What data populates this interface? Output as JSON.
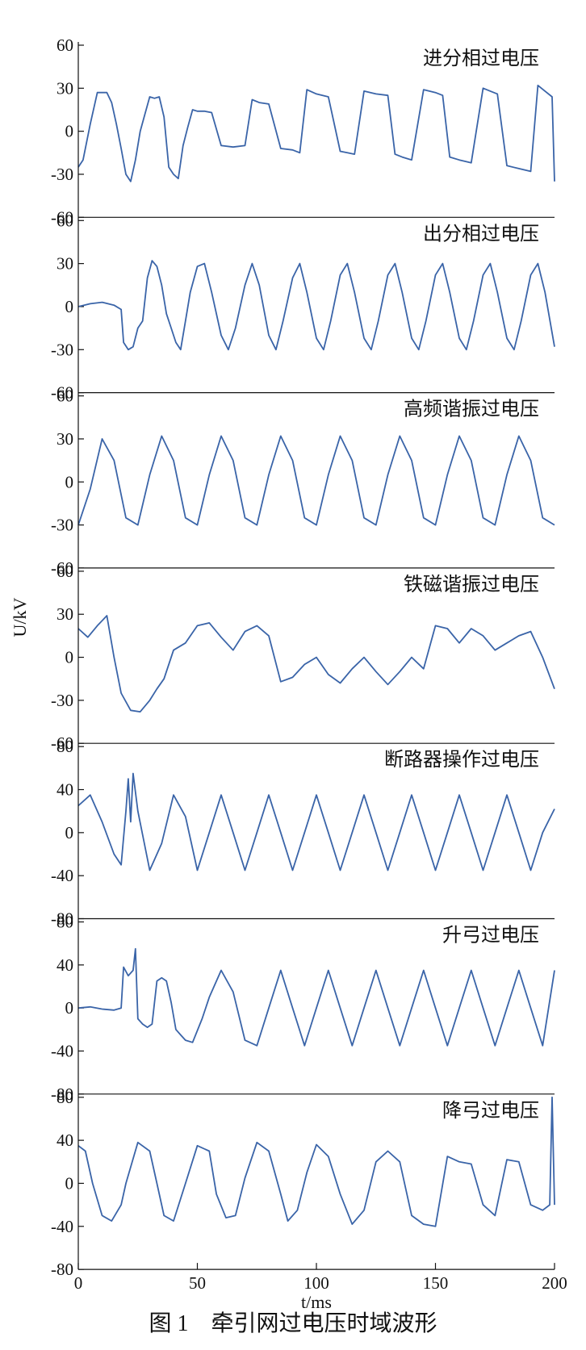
{
  "caption": "图 1　牵引网过电压时域波形",
  "chart_data": {
    "type": "line",
    "xlabel": "t/ms",
    "ylabel": "U/kV",
    "xlim": [
      0,
      200
    ],
    "xticks": [
      0,
      50,
      100,
      150,
      200
    ],
    "line_color": "#3a64a8",
    "panels": [
      {
        "title": "进分相过电压",
        "ylim": [
          -60,
          60
        ],
        "yticks": [
          -60,
          -30,
          0,
          30,
          60
        ],
        "series": [
          {
            "x": [
              0,
              2,
              5,
              8,
              12,
              14,
              16,
              18,
              20,
              22,
              24,
              26,
              28,
              30,
              32,
              34,
              36,
              38,
              40,
              42,
              44,
              46,
              48,
              50,
              53,
              56,
              60,
              65,
              70,
              73,
              76,
              80,
              85,
              90,
              93,
              96,
              100,
              105,
              110,
              113,
              116,
              120,
              125,
              130,
              133,
              136,
              140,
              145,
              150,
              153,
              156,
              160,
              165,
              170,
              173,
              176,
              180,
              185,
              190,
              193,
              196,
              199,
              200
            ],
            "y": [
              -25,
              -20,
              5,
              27,
              27,
              20,
              5,
              -12,
              -30,
              -35,
              -20,
              0,
              12,
              24,
              23,
              24,
              10,
              -25,
              -30,
              -33,
              -10,
              3,
              15,
              14,
              14,
              13,
              -10,
              -11,
              -10,
              22,
              20,
              19,
              -12,
              -13,
              -15,
              29,
              26,
              24,
              -14,
              -15,
              -16,
              28,
              26,
              25,
              -16,
              -18,
              -20,
              29,
              27,
              25,
              -18,
              -20,
              -22,
              30,
              28,
              26,
              -24,
              -26,
              -28,
              32,
              28,
              24,
              -35
            ]
          }
        ]
      },
      {
        "title": "出分相过电压",
        "ylim": [
          -60,
          60
        ],
        "yticks": [
          -60,
          -30,
          0,
          30,
          60
        ],
        "series": [
          {
            "x": [
              0,
              5,
              10,
              15,
              18,
              19,
              21,
              23,
              25,
              27,
              29,
              31,
              33,
              35,
              37,
              39,
              41,
              43,
              45,
              47,
              50,
              53,
              56,
              60,
              63,
              66,
              70,
              73,
              76,
              80,
              83,
              86,
              90,
              93,
              96,
              100,
              103,
              106,
              110,
              113,
              116,
              120,
              123,
              126,
              130,
              133,
              136,
              140,
              143,
              146,
              150,
              153,
              156,
              160,
              163,
              166,
              170,
              173,
              176,
              180,
              183,
              186,
              190,
              193,
              196,
              200
            ],
            "y": [
              0,
              2,
              3,
              1,
              -2,
              -25,
              -30,
              -28,
              -15,
              -10,
              20,
              32,
              28,
              15,
              -5,
              -15,
              -25,
              -30,
              -10,
              10,
              28,
              30,
              10,
              -20,
              -30,
              -15,
              15,
              30,
              15,
              -20,
              -30,
              -10,
              20,
              30,
              10,
              -22,
              -30,
              -10,
              22,
              30,
              10,
              -22,
              -30,
              -10,
              22,
              30,
              10,
              -22,
              -30,
              -10,
              22,
              30,
              10,
              -22,
              -30,
              -10,
              22,
              30,
              10,
              -22,
              -30,
              -10,
              22,
              30,
              10,
              -28
            ]
          }
        ]
      },
      {
        "title": "高频谐振过电压",
        "ylim": [
          -60,
          60
        ],
        "yticks": [
          -60,
          -30,
          0,
          30,
          60
        ],
        "series": [
          {
            "x": [
              0,
              5,
              10,
              15,
              20,
              25,
              30,
              35,
              40,
              45,
              50,
              55,
              60,
              65,
              70,
              75,
              80,
              85,
              90,
              95,
              100,
              105,
              110,
              115,
              120,
              125,
              130,
              135,
              140,
              145,
              150,
              155,
              160,
              165,
              170,
              175,
              180,
              185,
              190,
              195,
              200
            ],
            "y": [
              -30,
              -5,
              30,
              15,
              -25,
              -30,
              5,
              32,
              15,
              -25,
              -30,
              5,
              32,
              15,
              -25,
              -30,
              5,
              32,
              15,
              -25,
              -30,
              5,
              32,
              15,
              -25,
              -30,
              5,
              32,
              15,
              -25,
              -30,
              5,
              32,
              15,
              -25,
              -30,
              5,
              32,
              15,
              -25,
              -30
            ]
          }
        ]
      },
      {
        "title": "铁磁谐振过电压",
        "ylim": [
          -60,
          60
        ],
        "yticks": [
          -60,
          -30,
          0,
          30,
          60
        ],
        "series": [
          {
            "x": [
              0,
              4,
              8,
              12,
              15,
              18,
              22,
              26,
              30,
              33,
              36,
              40,
              45,
              50,
              55,
              60,
              65,
              70,
              75,
              80,
              85,
              90,
              95,
              100,
              105,
              110,
              115,
              120,
              125,
              130,
              135,
              140,
              145,
              150,
              155,
              160,
              165,
              170,
              175,
              180,
              185,
              190,
              195,
              200
            ],
            "y": [
              20,
              14,
              22,
              29,
              0,
              -25,
              -37,
              -38,
              -30,
              -22,
              -15,
              5,
              10,
              22,
              24,
              14,
              5,
              18,
              22,
              15,
              -17,
              -14,
              -5,
              0,
              -12,
              -18,
              -8,
              0,
              -10,
              -19,
              -10,
              0,
              -8,
              22,
              20,
              10,
              20,
              15,
              5,
              10,
              15,
              18,
              0,
              -22
            ]
          }
        ]
      },
      {
        "title": "断路器操作过电压",
        "ylim": [
          -80,
          80
        ],
        "yticks": [
          -80,
          -40,
          0,
          40,
          80
        ],
        "series": [
          {
            "x": [
              0,
              5,
              10,
              15,
              18,
              20,
              21,
              22,
              23,
              25,
              30,
              35,
              40,
              45,
              50,
              55,
              60,
              65,
              70,
              75,
              80,
              85,
              90,
              95,
              100,
              105,
              110,
              115,
              120,
              125,
              130,
              135,
              140,
              145,
              150,
              155,
              160,
              165,
              170,
              175,
              180,
              185,
              190,
              195,
              200
            ],
            "y": [
              25,
              35,
              10,
              -20,
              -30,
              20,
              50,
              10,
              55,
              20,
              -35,
              -10,
              35,
              15,
              -35,
              0,
              35,
              0,
              -35,
              0,
              35,
              0,
              -35,
              0,
              35,
              0,
              -35,
              0,
              35,
              0,
              -35,
              0,
              35,
              0,
              -35,
              0,
              35,
              0,
              -35,
              0,
              35,
              0,
              -35,
              0,
              22
            ]
          }
        ]
      },
      {
        "title": "升弓过电压",
        "ylim": [
          -80,
          80
        ],
        "yticks": [
          -80,
          -40,
          0,
          40,
          80
        ],
        "series": [
          {
            "x": [
              0,
              5,
              10,
              15,
              18,
              19,
              21,
              23,
              24,
              25,
              27,
              29,
              31,
              33,
              35,
              37,
              39,
              41,
              43,
              45,
              48,
              52,
              55,
              60,
              65,
              70,
              75,
              80,
              85,
              90,
              95,
              100,
              105,
              110,
              115,
              120,
              125,
              130,
              135,
              140,
              145,
              150,
              155,
              160,
              165,
              170,
              175,
              180,
              185,
              190,
              195,
              200
            ],
            "y": [
              0,
              1,
              -1,
              -2,
              0,
              38,
              30,
              35,
              55,
              -10,
              -15,
              -18,
              -15,
              25,
              28,
              25,
              5,
              -20,
              -25,
              -30,
              -32,
              -10,
              10,
              35,
              15,
              -30,
              -35,
              0,
              35,
              0,
              -35,
              0,
              35,
              0,
              -35,
              0,
              35,
              0,
              -35,
              0,
              35,
              0,
              -35,
              0,
              35,
              0,
              -35,
              0,
              35,
              0,
              -35,
              35
            ]
          }
        ]
      },
      {
        "title": "降弓过电压",
        "ylim": [
          -80,
          80
        ],
        "yticks": [
          -80,
          -40,
          0,
          40,
          80
        ],
        "series": [
          {
            "x": [
              0,
              3,
              6,
              10,
              14,
              18,
              20,
              25,
              30,
              33,
              36,
              40,
              45,
              50,
              55,
              58,
              62,
              66,
              70,
              75,
              80,
              85,
              88,
              92,
              96,
              100,
              105,
              110,
              115,
              120,
              125,
              130,
              135,
              140,
              145,
              150,
              155,
              160,
              165,
              170,
              175,
              180,
              185,
              190,
              195,
              198,
              199,
              200
            ],
            "y": [
              35,
              30,
              0,
              -30,
              -35,
              -20,
              0,
              38,
              30,
              0,
              -30,
              -35,
              0,
              35,
              30,
              -10,
              -32,
              -30,
              5,
              38,
              30,
              -10,
              -35,
              -25,
              10,
              36,
              25,
              -10,
              -38,
              -25,
              20,
              30,
              20,
              -30,
              -38,
              -40,
              25,
              20,
              18,
              -20,
              -30,
              22,
              20,
              -20,
              -25,
              -20,
              80,
              -20
            ]
          }
        ]
      }
    ]
  }
}
